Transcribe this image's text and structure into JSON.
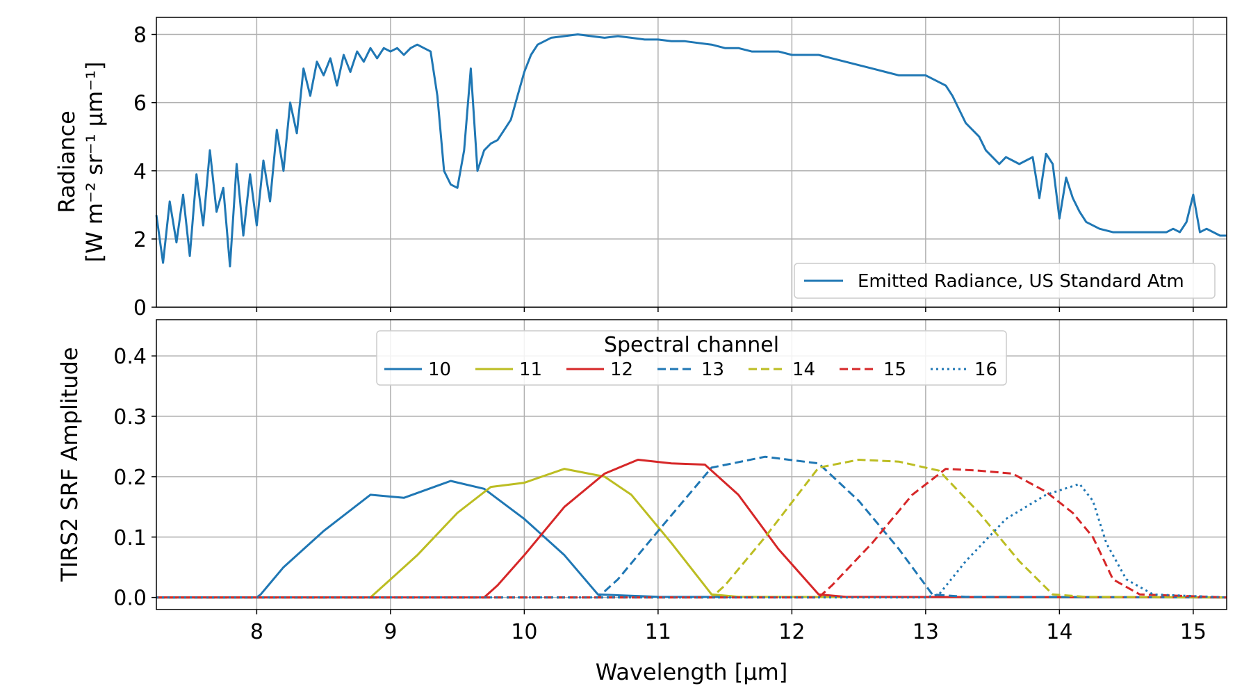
{
  "chart_data": [
    {
      "type": "line",
      "ylabel_line1": "Radiance",
      "ylabel_line2": "[W m⁻² sr⁻¹ μm⁻¹]",
      "xlim": [
        7.25,
        15.25
      ],
      "ylim": [
        0,
        8.5
      ],
      "yticks": [
        "0",
        "2",
        "4",
        "6",
        "8"
      ],
      "grid": true,
      "legend_position": "lower-right",
      "series": [
        {
          "name": "Emitted Radiance, US Standard Atm",
          "color": "#1f77b4",
          "x": [
            7.25,
            7.3,
            7.35,
            7.4,
            7.45,
            7.5,
            7.55,
            7.6,
            7.65,
            7.7,
            7.75,
            7.8,
            7.85,
            7.9,
            7.95,
            8.0,
            8.05,
            8.1,
            8.15,
            8.2,
            8.25,
            8.3,
            8.35,
            8.4,
            8.45,
            8.5,
            8.55,
            8.6,
            8.65,
            8.7,
            8.75,
            8.8,
            8.85,
            8.9,
            8.95,
            9.0,
            9.05,
            9.1,
            9.15,
            9.2,
            9.25,
            9.3,
            9.35,
            9.4,
            9.45,
            9.5,
            9.55,
            9.6,
            9.65,
            9.7,
            9.75,
            9.8,
            9.85,
            9.9,
            9.95,
            10.0,
            10.05,
            10.1,
            10.15,
            10.2,
            10.3,
            10.4,
            10.5,
            10.6,
            10.7,
            10.8,
            10.9,
            11.0,
            11.1,
            11.2,
            11.3,
            11.4,
            11.5,
            11.6,
            11.7,
            11.8,
            11.9,
            12.0,
            12.1,
            12.2,
            12.3,
            12.4,
            12.5,
            12.6,
            12.7,
            12.8,
            12.9,
            13.0,
            13.05,
            13.1,
            13.15,
            13.2,
            13.25,
            13.3,
            13.35,
            13.4,
            13.45,
            13.5,
            13.55,
            13.6,
            13.65,
            13.7,
            13.75,
            13.8,
            13.85,
            13.9,
            13.95,
            14.0,
            14.05,
            14.1,
            14.15,
            14.2,
            14.3,
            14.4,
            14.5,
            14.6,
            14.7,
            14.8,
            14.85,
            14.9,
            14.95,
            15.0,
            15.05,
            15.1,
            15.15,
            15.2,
            15.25
          ],
          "y": [
            2.7,
            1.3,
            3.1,
            1.9,
            3.3,
            1.5,
            3.9,
            2.4,
            4.6,
            2.8,
            3.5,
            1.2,
            4.2,
            2.1,
            3.9,
            2.4,
            4.3,
            3.1,
            5.2,
            4.0,
            6.0,
            5.1,
            7.0,
            6.2,
            7.2,
            6.8,
            7.3,
            6.5,
            7.4,
            6.9,
            7.5,
            7.2,
            7.6,
            7.3,
            7.6,
            7.5,
            7.6,
            7.4,
            7.6,
            7.7,
            7.6,
            7.5,
            6.2,
            4.0,
            3.6,
            3.5,
            4.6,
            7.0,
            4.0,
            4.6,
            4.8,
            4.9,
            5.2,
            5.5,
            6.2,
            6.9,
            7.4,
            7.7,
            7.8,
            7.9,
            7.95,
            8.0,
            7.95,
            7.9,
            7.95,
            7.9,
            7.85,
            7.85,
            7.8,
            7.8,
            7.75,
            7.7,
            7.6,
            7.6,
            7.5,
            7.5,
            7.5,
            7.4,
            7.4,
            7.4,
            7.3,
            7.2,
            7.1,
            7.0,
            6.9,
            6.8,
            6.8,
            6.8,
            6.7,
            6.6,
            6.5,
            6.2,
            5.8,
            5.4,
            5.2,
            5.0,
            4.6,
            4.4,
            4.2,
            4.4,
            4.3,
            4.2,
            4.3,
            4.4,
            3.2,
            4.5,
            4.2,
            2.6,
            3.8,
            3.2,
            2.8,
            2.5,
            2.3,
            2.2,
            2.2,
            2.2,
            2.2,
            2.2,
            2.3,
            2.2,
            2.5,
            3.3,
            2.2,
            2.3,
            2.2,
            2.1,
            2.1
          ]
        }
      ]
    },
    {
      "type": "line",
      "xlabel": "Wavelength [μm]",
      "ylabel": "TIRS2 SRF Amplitude",
      "xlim": [
        7.25,
        15.25
      ],
      "ylim": [
        -0.02,
        0.46
      ],
      "xticks": [
        "8",
        "9",
        "10",
        "11",
        "12",
        "13",
        "14",
        "15"
      ],
      "yticks": [
        "0.0",
        "0.1",
        "0.2",
        "0.3",
        "0.4"
      ],
      "grid": true,
      "legend_title": "Spectral channel",
      "legend_position": "upper-center",
      "series": [
        {
          "name": "10",
          "color": "#1f77b4",
          "dash": "solid",
          "x": [
            7.25,
            8.0,
            8.03,
            8.2,
            8.5,
            8.85,
            9.1,
            9.45,
            9.7,
            10.0,
            10.3,
            10.55,
            11.0,
            15.25
          ],
          "y": [
            0,
            0,
            0.005,
            0.05,
            0.11,
            0.17,
            0.165,
            0.193,
            0.18,
            0.13,
            0.07,
            0.005,
            0.001,
            0
          ]
        },
        {
          "name": "11",
          "color": "#bcbd22",
          "dash": "solid",
          "x": [
            7.25,
            8.85,
            9.0,
            9.2,
            9.5,
            9.75,
            10.0,
            10.3,
            10.6,
            10.8,
            11.1,
            11.4,
            11.6,
            15.25
          ],
          "y": [
            0,
            0,
            0.03,
            0.07,
            0.14,
            0.183,
            0.19,
            0.213,
            0.2,
            0.17,
            0.09,
            0.005,
            0.001,
            0
          ]
        },
        {
          "name": "12",
          "color": "#d62728",
          "dash": "solid",
          "x": [
            7.25,
            9.7,
            9.8,
            10.0,
            10.3,
            10.6,
            10.85,
            11.1,
            11.35,
            11.6,
            11.9,
            12.2,
            12.4,
            15.25
          ],
          "y": [
            0,
            0,
            0.02,
            0.07,
            0.15,
            0.205,
            0.228,
            0.222,
            0.22,
            0.17,
            0.08,
            0.005,
            0.001,
            0
          ]
        },
        {
          "name": "13",
          "color": "#1f77b4",
          "dash": "dashed",
          "x": [
            7.25,
            10.55,
            10.7,
            11.0,
            11.4,
            11.8,
            12.2,
            12.5,
            12.8,
            13.05,
            13.3,
            15.25
          ],
          "y": [
            0,
            0,
            0.03,
            0.11,
            0.215,
            0.233,
            0.222,
            0.16,
            0.08,
            0.005,
            0.001,
            0
          ]
        },
        {
          "name": "14",
          "color": "#bcbd22",
          "dash": "dashed",
          "x": [
            7.25,
            11.4,
            11.5,
            11.8,
            12.2,
            12.5,
            12.8,
            13.1,
            13.4,
            13.7,
            13.95,
            14.2,
            15.25
          ],
          "y": [
            0,
            0,
            0.02,
            0.1,
            0.215,
            0.228,
            0.225,
            0.21,
            0.14,
            0.06,
            0.005,
            0.001,
            0
          ]
        },
        {
          "name": "15",
          "color": "#d62728",
          "dash": "dashed",
          "x": [
            7.25,
            12.2,
            12.3,
            12.6,
            12.9,
            13.15,
            13.4,
            13.65,
            13.9,
            14.1,
            14.25,
            14.4,
            14.6,
            15.25
          ],
          "y": [
            0,
            0,
            0.02,
            0.09,
            0.17,
            0.213,
            0.21,
            0.205,
            0.175,
            0.14,
            0.1,
            0.03,
            0.005,
            0
          ]
        },
        {
          "name": "16",
          "color": "#1f77b4",
          "dash": "dotted",
          "x": [
            7.25,
            13.0,
            13.1,
            13.3,
            13.6,
            13.9,
            14.15,
            14.25,
            14.35,
            14.5,
            14.7,
            15.25
          ],
          "y": [
            0,
            0,
            0.005,
            0.06,
            0.13,
            0.17,
            0.188,
            0.16,
            0.09,
            0.03,
            0.005,
            0
          ]
        }
      ]
    }
  ]
}
